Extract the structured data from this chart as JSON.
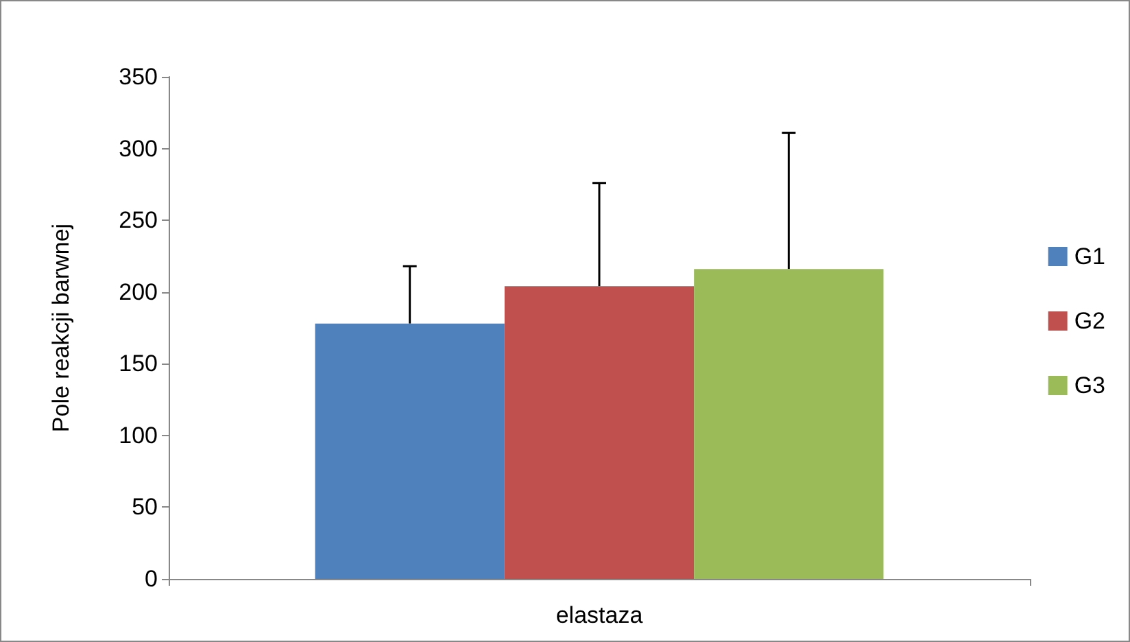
{
  "chart_data": {
    "type": "bar",
    "ylabel": "Pole reakcji barwnej",
    "categories": [
      "elastaza"
    ],
    "series": [
      {
        "name": "G1",
        "color": "#4f81bd",
        "values": [
          178
        ],
        "errors": [
          [
            178,
            218
          ]
        ]
      },
      {
        "name": "G2",
        "color": "#c0504d",
        "values": [
          204
        ],
        "errors": [
          [
            204,
            276
          ]
        ]
      },
      {
        "name": "G3",
        "color": "#9bbb59",
        "values": [
          216
        ],
        "errors": [
          [
            216,
            311
          ]
        ]
      }
    ],
    "ylim": [
      0,
      350
    ],
    "yticks": [
      0,
      50,
      100,
      150,
      200,
      250,
      300,
      350
    ],
    "grid": false,
    "legend": "right"
  }
}
